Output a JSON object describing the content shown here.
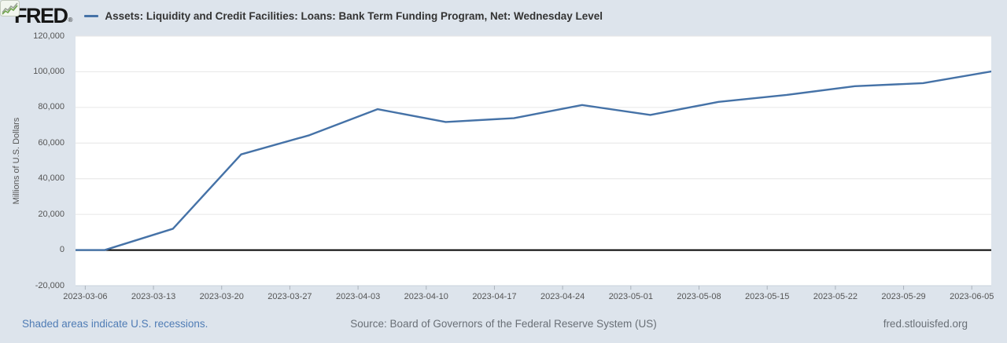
{
  "header": {
    "logo_text": "FRED",
    "registered_mark": "®",
    "logo_chart_icon": "fred-sparkline-icon",
    "legend": {
      "marker": "line-dash",
      "label": "Assets: Liquidity and Credit Facilities: Loans: Bank Term Funding Program, Net: Wednesday Level"
    }
  },
  "chart_data": {
    "type": "line",
    "title": "Assets: Liquidity and Credit Facilities: Loans: Bank Term Funding Program, Net: Wednesday Level",
    "ylabel": "Millions of U.S. Dollars",
    "xlabel": "",
    "ylim": [
      -20000,
      120000
    ],
    "y_ticks": [
      120000,
      100000,
      80000,
      60000,
      40000,
      20000,
      0,
      -20000
    ],
    "y_tick_labels": [
      "120,000",
      "100,000",
      "80,000",
      "60,000",
      "40,000",
      "20,000",
      "0",
      "-20,000"
    ],
    "x_range": [
      "2023-03-05",
      "2023-06-07"
    ],
    "x_tick_dates": [
      "2023-03-06",
      "2023-03-13",
      "2023-03-20",
      "2023-03-27",
      "2023-04-03",
      "2023-04-10",
      "2023-04-17",
      "2023-04-24",
      "2023-05-01",
      "2023-05-08",
      "2023-05-15",
      "2023-05-22",
      "2023-05-29",
      "2023-06-05"
    ],
    "grid": "horizontal-only",
    "zero_baseline": true,
    "legend_position": "top-left-header",
    "series": [
      {
        "name": "Assets: Liquidity and Credit Facilities: Loans: Bank Term Funding Program, Net: Wednesday Level",
        "color": "#4572a7",
        "dates": [
          "2023-03-01",
          "2023-03-08",
          "2023-03-15",
          "2023-03-22",
          "2023-03-29",
          "2023-04-05",
          "2023-04-12",
          "2023-04-19",
          "2023-04-26",
          "2023-05-03",
          "2023-05-10",
          "2023-05-17",
          "2023-05-24",
          "2023-05-31",
          "2023-06-07"
        ],
        "values": [
          0,
          0,
          11943,
          53669,
          64403,
          79021,
          71837,
          73982,
          81327,
          75778,
          83101,
          87006,
          91907,
          93615,
          100161
        ]
      }
    ]
  },
  "footer": {
    "recessions_note": "Shaded areas indicate U.S. recessions.",
    "source": "Source: Board of Governors of the Federal Reserve System (US)",
    "site": "fred.stlouisfed.org"
  },
  "colors": {
    "page_bg": "#dde4ec",
    "plot_bg": "#ffffff",
    "grid": "#e6e6e6",
    "axis_line": "#c9d2db",
    "tick_mark": "#aab2bb",
    "zero_line": "#000000",
    "line": "#4572a7",
    "axis_text": "#555555",
    "title_text": "#333333",
    "link_text": "#4f7cb5",
    "muted_text": "#696f76"
  }
}
